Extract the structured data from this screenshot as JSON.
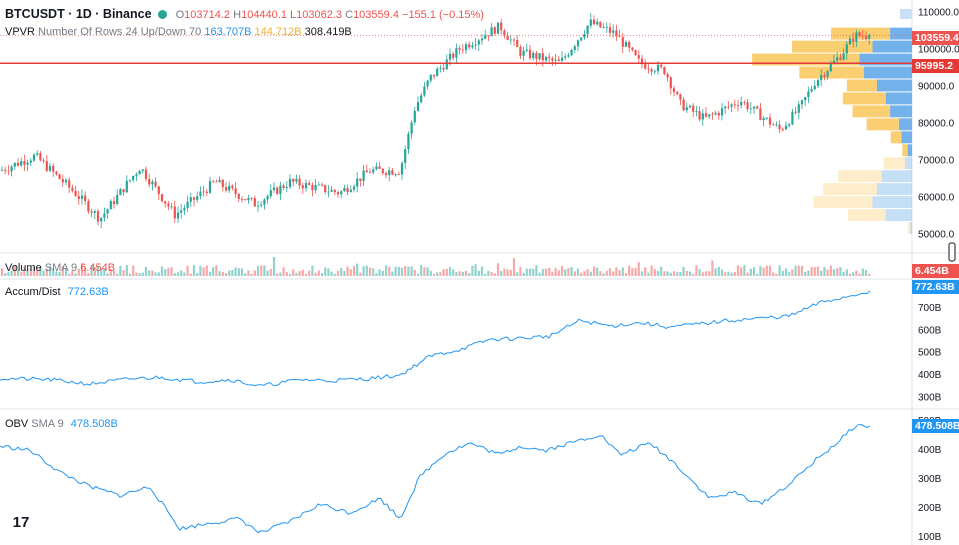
{
  "header": {
    "symbol": "BTCUSDT · 1D · Binance",
    "ohlc": {
      "o_label": "O",
      "o": "103714.2",
      "h_label": "H",
      "h": "104440.1",
      "l_label": "L",
      "l": "103062.3",
      "c_label": "C",
      "c": "103559.4",
      "chg": "−155.1 (−0.15%)"
    }
  },
  "vpvr": {
    "label": "VPVR",
    "params": "Number Of Rows 24 Up/Down 70",
    "up": "163.707B",
    "down": "144.712B",
    "total": "308.419B"
  },
  "volume": {
    "label": "Volume",
    "params": "SMA 9",
    "value": "6.454B"
  },
  "accum": {
    "label": "Accum/Dist",
    "value": "772.63B"
  },
  "obv": {
    "label": "OBV",
    "params": "SMA 9",
    "value": "478.508B"
  },
  "price_badges": {
    "last": "103559.4",
    "line": "95995.2",
    "volume": "6.454B",
    "accum": "772.63B",
    "obv": "478.508B"
  },
  "colors": {
    "up": "#26a69a",
    "down": "#ef5350",
    "vp_up": "#5aa3e8",
    "vp_down": "#f7c34e",
    "line": "#2196f3",
    "marker": "#e53935"
  },
  "logo": "17",
  "chart_data": [
    {
      "type": "candlestick",
      "panel": "price",
      "ylim": [
        48000,
        112000
      ],
      "y_ticks": [
        "110000.0",
        "100000.0",
        "90000.0",
        "80000.0",
        "70000.0",
        "60000.0",
        "50000.0"
      ],
      "y_tick_values": [
        110000,
        100000,
        90000,
        80000,
        70000,
        60000,
        50000
      ],
      "horizontal_line": 95995.2,
      "close_anchors": [
        [
          0,
          67000
        ],
        [
          35,
          71000
        ],
        [
          75,
          61000
        ],
        [
          100,
          54000
        ],
        [
          140,
          68000
        ],
        [
          175,
          55000
        ],
        [
          215,
          64000
        ],
        [
          255,
          58000
        ],
        [
          290,
          64000
        ],
        [
          340,
          61000
        ],
        [
          370,
          67000
        ],
        [
          400,
          67000
        ],
        [
          415,
          84000
        ],
        [
          430,
          92000
        ],
        [
          460,
          100000
        ],
        [
          500,
          106000
        ],
        [
          520,
          99000
        ],
        [
          560,
          96000
        ],
        [
          590,
          107000
        ],
        [
          615,
          104000
        ],
        [
          640,
          96000
        ],
        [
          665,
          94000
        ],
        [
          680,
          85000
        ],
        [
          705,
          81000
        ],
        [
          720,
          83000
        ],
        [
          740,
          86000
        ],
        [
          760,
          82000
        ],
        [
          780,
          78000
        ],
        [
          800,
          84000
        ],
        [
          815,
          91000
        ],
        [
          840,
          98000
        ],
        [
          855,
          103500
        ],
        [
          870,
          103559.4
        ]
      ],
      "x_range": [
        0,
        875
      ],
      "volume_profile": {
        "rows_top": [
          {
            "price": 104000,
            "up": 0.25,
            "down": 0.55
          },
          {
            "price": 100500,
            "up": 0.45,
            "down": 0.75
          },
          {
            "price": 97000,
            "up": 0.6,
            "down": 1.0
          },
          {
            "price": 93500,
            "up": 0.55,
            "down": 0.6
          },
          {
            "price": 90000,
            "up": 0.4,
            "down": 0.28
          },
          {
            "price": 86500,
            "up": 0.3,
            "down": 0.4
          },
          {
            "price": 83000,
            "up": 0.25,
            "down": 0.35
          },
          {
            "price": 79500,
            "up": 0.15,
            "down": 0.3
          },
          {
            "price": 76000,
            "up": 0.12,
            "down": 0.1
          },
          {
            "price": 72500,
            "up": 0.05,
            "down": 0.05
          },
          {
            "price": 69000,
            "up": 0.08,
            "down": 0.2
          },
          {
            "price": 65500,
            "up": 0.35,
            "down": 0.4
          },
          {
            "price": 62000,
            "up": 0.4,
            "down": 0.5
          },
          {
            "price": 58500,
            "up": 0.45,
            "down": 0.55
          },
          {
            "price": 55000,
            "up": 0.3,
            "down": 0.35
          },
          {
            "price": 51500,
            "up": 0.02,
            "down": 0.02
          }
        ]
      }
    },
    {
      "type": "bar",
      "panel": "volume",
      "series_name": "Volume",
      "value": "6.454B"
    },
    {
      "type": "line",
      "panel": "accum_dist",
      "ylim": [
        270,
        790
      ],
      "y_ticks": [
        "700B",
        "600B",
        "500B",
        "400B",
        "300B"
      ],
      "y_tick_values": [
        700,
        600,
        500,
        400,
        300
      ],
      "anchors": [
        [
          0,
          380
        ],
        [
          50,
          375
        ],
        [
          90,
          355
        ],
        [
          130,
          378
        ],
        [
          160,
          385
        ],
        [
          200,
          365
        ],
        [
          230,
          375
        ],
        [
          260,
          345
        ],
        [
          300,
          375
        ],
        [
          330,
          370
        ],
        [
          370,
          380
        ],
        [
          400,
          395
        ],
        [
          430,
          480
        ],
        [
          460,
          510
        ],
        [
          490,
          555
        ],
        [
          520,
          560
        ],
        [
          550,
          570
        ],
        [
          580,
          640
        ],
        [
          610,
          615
        ],
        [
          640,
          630
        ],
        [
          670,
          610
        ],
        [
          700,
          625
        ],
        [
          730,
          640
        ],
        [
          760,
          650
        ],
        [
          790,
          660
        ],
        [
          820,
          720
        ],
        [
          850,
          750
        ],
        [
          870,
          772.63
        ]
      ]
    },
    {
      "type": "line",
      "panel": "obv",
      "ylim": [
        90,
        510
      ],
      "y_ticks": [
        "500B",
        "400B",
        "300B",
        "200B",
        "100B"
      ],
      "y_tick_values": [
        500,
        400,
        300,
        200,
        100
      ],
      "anchors": [
        [
          0,
          410
        ],
        [
          30,
          395
        ],
        [
          60,
          320
        ],
        [
          90,
          270
        ],
        [
          120,
          240
        ],
        [
          150,
          270
        ],
        [
          180,
          125
        ],
        [
          210,
          145
        ],
        [
          240,
          160
        ],
        [
          260,
          110
        ],
        [
          290,
          150
        ],
        [
          320,
          210
        ],
        [
          350,
          180
        ],
        [
          380,
          230
        ],
        [
          400,
          160
        ],
        [
          420,
          305
        ],
        [
          445,
          385
        ],
        [
          470,
          420
        ],
        [
          500,
          380
        ],
        [
          520,
          410
        ],
        [
          545,
          395
        ],
        [
          570,
          420
        ],
        [
          600,
          450
        ],
        [
          620,
          380
        ],
        [
          650,
          420
        ],
        [
          675,
          350
        ],
        [
          695,
          280
        ],
        [
          710,
          230
        ],
        [
          735,
          250
        ],
        [
          760,
          210
        ],
        [
          790,
          280
        ],
        [
          815,
          360
        ],
        [
          840,
          430
        ],
        [
          855,
          480
        ],
        [
          870,
          478.5
        ]
      ]
    }
  ]
}
